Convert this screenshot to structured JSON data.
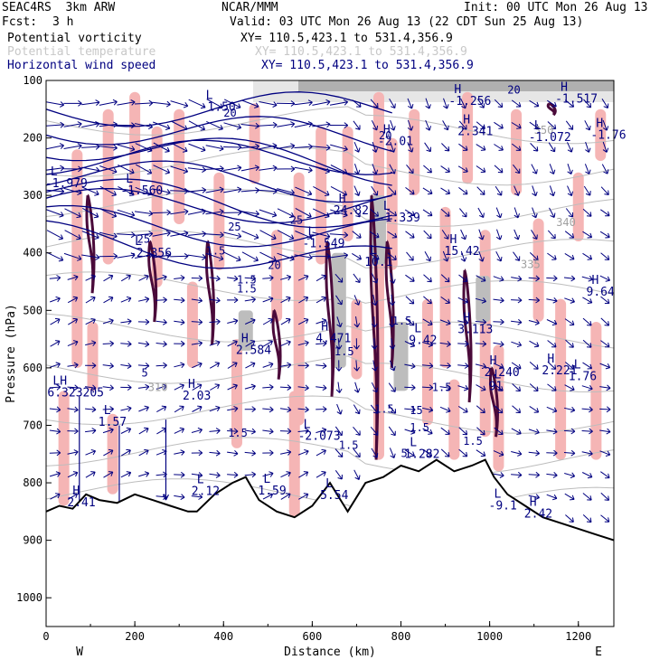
{
  "header": {
    "model": "SEAC4RS  3km ARW",
    "org": "NCAR/MMM",
    "init": "Init: 00 UTC Mon 26 Aug 13",
    "fcst_label": "Fcst:",
    "fcst_value": "3 h",
    "valid": "Valid: 03 UTC Mon 26 Aug 13 (22 CDT Sun 25 Aug 13)",
    "fields": [
      {
        "name": "Potential vorticity",
        "xy": "XY= 110.5,423.1 to 531.4,356.9",
        "color": "#000000"
      },
      {
        "name": "Potential temperature",
        "xy": "XY= 110.5,423.1 to 531.4,356.9",
        "color": "#c8c8c8"
      },
      {
        "name": "Horizontal wind speed",
        "xy": "XY= 110.5,423.1 to 531.4,356.9",
        "color": "#000080"
      }
    ]
  },
  "chart_data": {
    "type": "cross-section",
    "xlabel": "Distance (km)",
    "ylabel": "Pressure (hPa)",
    "xlim": [
      0,
      1280
    ],
    "ylim": [
      1050,
      100
    ],
    "x_ticks": [
      0,
      200,
      400,
      600,
      800,
      1000,
      1200
    ],
    "y_ticks": [
      100,
      200,
      300,
      400,
      500,
      600,
      700,
      800,
      900,
      1000
    ],
    "x_ends": {
      "left": "W",
      "right": "E"
    },
    "terrain_surface": {
      "x": [
        0,
        30,
        60,
        90,
        120,
        160,
        200,
        240,
        280,
        320,
        340,
        380,
        420,
        450,
        480,
        520,
        560,
        600,
        640,
        680,
        720,
        760,
        800,
        840,
        880,
        920,
        960,
        990,
        1010,
        1040,
        1080,
        1120,
        1160,
        1200,
        1240,
        1280
      ],
      "p": [
        850,
        840,
        845,
        820,
        830,
        835,
        820,
        830,
        840,
        850,
        850,
        820,
        800,
        790,
        830,
        850,
        860,
        840,
        800,
        850,
        800,
        790,
        770,
        780,
        760,
        780,
        770,
        760,
        790,
        820,
        840,
        860,
        870,
        880,
        890,
        900
      ]
    },
    "theta_contour_labels": [
      {
        "text": "350",
        "x": 1100,
        "p": 193
      },
      {
        "text": "340",
        "x": 1150,
        "p": 353
      },
      {
        "text": "335",
        "x": 1070,
        "p": 426
      },
      {
        "text": "310",
        "x": 230,
        "p": 640
      }
    ],
    "pv_contour_labels": [
      {
        "text": "5",
        "x": 215,
        "p": 615
      },
      {
        "text": "1.5",
        "x": 360,
        "p": 403
      },
      {
        "text": "1.5",
        "x": 430,
        "p": 453
      },
      {
        "text": "1.5",
        "x": 780,
        "p": 525
      },
      {
        "text": "1.5",
        "x": 650,
        "p": 578
      },
      {
        "text": "1.5",
        "x": 870,
        "p": 640
      },
      {
        "text": "1.5",
        "x": 660,
        "p": 741
      },
      {
        "text": "1.5",
        "x": 940,
        "p": 734
      },
      {
        "text": "1.5",
        "x": 740,
        "p": 678
      },
      {
        "text": "1.5",
        "x": 430,
        "p": 469
      },
      {
        "text": "1.5",
        "x": 410,
        "p": 720
      },
      {
        "text": "1.5",
        "x": 820,
        "p": 710
      },
      {
        "text": "5",
        "x": 800,
        "p": 755
      }
    ],
    "wind_labels": [
      {
        "text": "20",
        "x": 400,
        "p": 163
      },
      {
        "text": "20",
        "x": 1040,
        "p": 123
      },
      {
        "text": "20",
        "x": 750,
        "p": 202
      },
      {
        "text": "25",
        "x": 550,
        "p": 349
      },
      {
        "text": "25",
        "x": 205,
        "p": 382
      },
      {
        "text": "25",
        "x": 410,
        "p": 361
      },
      {
        "text": "20",
        "x": 500,
        "p": 428
      },
      {
        "text": "15",
        "x": 820,
        "p": 680
      }
    ],
    "extrema": [
      {
        "type": "L",
        "x": 360,
        "p": 132,
        "value": "-1.50"
      },
      {
        "type": "L",
        "x": 180,
        "p": 278,
        "value": "-1.560"
      },
      {
        "type": "L",
        "x": 10,
        "p": 265,
        "value": "-1.979"
      },
      {
        "type": "H",
        "x": 920,
        "p": 122,
        "value": "-1.256"
      },
      {
        "type": "H",
        "x": 1160,
        "p": 118,
        "value": "-1.517"
      },
      {
        "type": "H",
        "x": 760,
        "p": 192,
        "value": "-2.01"
      },
      {
        "type": "H",
        "x": 940,
        "p": 175,
        "value": "2.341"
      },
      {
        "type": "L",
        "x": 1100,
        "p": 185,
        "value": "-1.072"
      },
      {
        "type": "H",
        "x": 1240,
        "p": 181,
        "value": "-1.76"
      },
      {
        "type": "H",
        "x": 660,
        "p": 312,
        "value": "24.82"
      },
      {
        "type": "L",
        "x": 760,
        "p": 325,
        "value": "-1.339"
      },
      {
        "type": "L",
        "x": 590,
        "p": 370,
        "value": "-1.549"
      },
      {
        "type": "L",
        "x": 200,
        "p": 386,
        "value": "-2.356"
      },
      {
        "type": "L",
        "x": 730,
        "p": 402,
        "value": "10.1"
      },
      {
        "type": "H",
        "x": 910,
        "p": 383,
        "value": "15.42"
      },
      {
        "type": "H",
        "x": 1230,
        "p": 454,
        "value": "9.64"
      },
      {
        "type": "H",
        "x": 940,
        "p": 519,
        "value": "3.113"
      },
      {
        "type": "H",
        "x": 440,
        "p": 555,
        "value": "2.584"
      },
      {
        "type": "H",
        "x": 620,
        "p": 535,
        "value": "4.471"
      },
      {
        "type": "L",
        "x": 830,
        "p": 538,
        "value": "9.42"
      },
      {
        "type": "H",
        "x": 1000,
        "p": 594,
        "value": "2.240"
      },
      {
        "type": "H",
        "x": 1130,
        "p": 591,
        "value": "2.221"
      },
      {
        "type": "L",
        "x": 1190,
        "p": 601,
        "value": "1.76"
      },
      {
        "type": "L",
        "x": 1010,
        "p": 618,
        "value": "91"
      },
      {
        "type": "LH",
        "x": 15,
        "p": 629,
        "value": "6.323205"
      },
      {
        "type": "H",
        "x": 320,
        "p": 635,
        "value": "2.03"
      },
      {
        "type": "L",
        "x": 130,
        "p": 680,
        "value": "1.57"
      },
      {
        "type": "L",
        "x": 580,
        "p": 705,
        "value": "-2.073"
      },
      {
        "type": "L",
        "x": 820,
        "p": 736,
        "value": "1.282"
      },
      {
        "type": "L",
        "x": 340,
        "p": 801,
        "value": "2.12"
      },
      {
        "type": "L",
        "x": 490,
        "p": 800,
        "value": "1.59"
      },
      {
        "type": "L",
        "x": 630,
        "p": 808,
        "value": "5.54"
      },
      {
        "type": "H",
        "x": 60,
        "p": 820,
        "value": "2.41"
      },
      {
        "type": "L",
        "x": 1010,
        "p": 826,
        "value": "-9.1"
      },
      {
        "type": "H",
        "x": 1090,
        "p": 840,
        "value": "2.42"
      }
    ],
    "legend_colors": {
      "pv_shading": "#f5b5b5",
      "pv_contour": "#4a0a3a",
      "theta": "#bdbdbd",
      "wind": "#000080",
      "terrain": "#000000"
    }
  }
}
